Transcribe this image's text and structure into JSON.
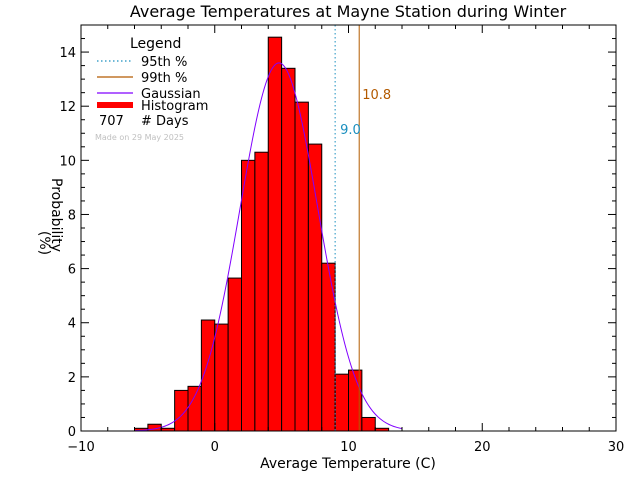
{
  "chart_data": {
    "type": "bar",
    "title": "Average Temperatures at Mayne Station during Winter",
    "xlabel": "Average Temperature (C)",
    "ylabel_top": "Probability",
    "ylabel_bottom": "(%)",
    "xlim": [
      -10,
      30
    ],
    "ylim": [
      0,
      15
    ],
    "xticks": [
      -10,
      0,
      10,
      20,
      30
    ],
    "yticks": [
      0,
      2,
      4,
      6,
      8,
      10,
      12,
      14
    ],
    "bin_width": 1,
    "histogram": {
      "bin_starts": [
        -6,
        -5,
        -4,
        -3,
        -2,
        -1,
        0,
        1,
        2,
        3,
        4,
        5,
        6,
        7,
        8,
        9,
        10,
        11,
        12
      ],
      "values": [
        0.1,
        0.25,
        0.1,
        1.5,
        1.65,
        4.1,
        3.95,
        5.65,
        10.0,
        10.3,
        14.55,
        13.4,
        12.15,
        10.6,
        6.2,
        2.1,
        2.25,
        0.5,
        0.1
      ]
    },
    "gaussian": {
      "mean": 4.8,
      "stdev": 2.9,
      "peak": 13.6,
      "color": "#8000ff"
    },
    "percentile_95": {
      "value": 9.0,
      "label": "9.0",
      "color": "#1a8fbf"
    },
    "percentile_99": {
      "value": 10.8,
      "label": "10.8",
      "color": "#b35a00"
    },
    "bar_color": "#ff0000",
    "legend": {
      "title": "Legend",
      "placement": "top-left",
      "entries": [
        "95th %",
        "99th %",
        "Gaussian",
        "Histogram"
      ],
      "days_count": "707",
      "days_label": "# Days",
      "note": "Made on 29 May 2025"
    }
  }
}
